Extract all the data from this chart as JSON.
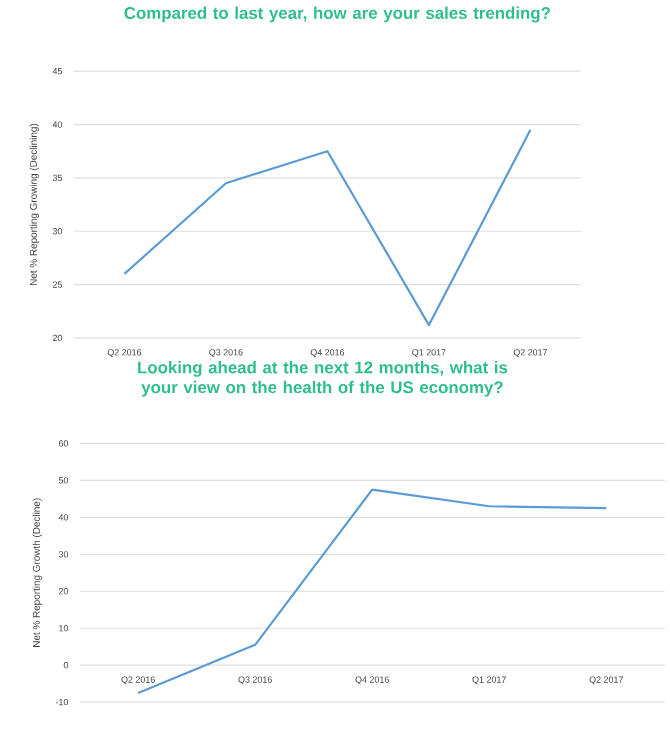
{
  "chart_data": [
    {
      "type": "line",
      "title": "Compared to last year, how are your sales trending?",
      "ylabel": "Net % Reporting Growing (Declining)",
      "categories": [
        "Q2 2016",
        "Q3 2016",
        "Q4 2016",
        "Q1 2017",
        "Q2 2017"
      ],
      "series": [
        {
          "color": "#5b9bd5",
          "values": [
            26,
            34.5,
            37.5,
            21.2,
            39.5
          ]
        }
      ],
      "ylim": [
        20,
        45
      ],
      "yticks": [
        20,
        25,
        30,
        35,
        40,
        45
      ],
      "grid": "y",
      "marker": "none",
      "line_style": "solid"
    },
    {
      "type": "line",
      "title": "Looking ahead at the next 12 months, what is your view on the health of the US economy?",
      "ylabel": "Net % Reporting Growth (Decline)",
      "categories": [
        "Q2 2016",
        "Q3 2016",
        "Q4 2016",
        "Q1 2017",
        "Q2 2017"
      ],
      "series": [
        {
          "color": "#5b9bd5",
          "values": [
            -7.5,
            5.5,
            47.5,
            43,
            42.5
          ]
        }
      ],
      "ylim": [
        -10,
        60
      ],
      "yticks": [
        -10,
        0,
        10,
        20,
        30,
        40,
        50,
        60
      ],
      "grid": "y",
      "marker": "none",
      "line_style": "solid"
    }
  ]
}
